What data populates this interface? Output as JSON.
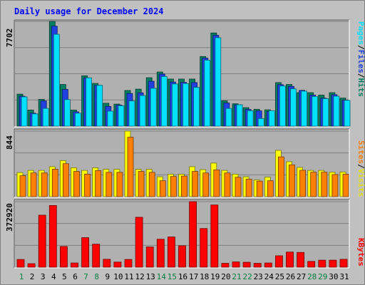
{
  "chart_data": [
    {
      "type": "bar",
      "title": "Daily usage for December 2024",
      "x": [
        "1",
        "2",
        "3",
        "4",
        "5",
        "6",
        "7",
        "8",
        "9",
        "10",
        "11",
        "12",
        "13",
        "14",
        "15",
        "16",
        "17",
        "18",
        "19",
        "20",
        "21",
        "22",
        "23",
        "24",
        "25",
        "26",
        "27",
        "28",
        "29",
        "30",
        "31"
      ],
      "weekend_days": [
        "1",
        "7",
        "8",
        "14",
        "15",
        "21",
        "22",
        "28",
        "29"
      ],
      "ylim": [
        0,
        7702
      ],
      "ytick": "7702",
      "grid": true,
      "legend": [
        "Pages",
        "/",
        "Files",
        "/",
        "Hits"
      ],
      "series": [
        {
          "name": "Hits",
          "color": "#007f5f",
          "values": [
            2350,
            1180,
            1970,
            7702,
            3060,
            1180,
            3700,
            3140,
            1680,
            1620,
            2620,
            2720,
            3560,
            3980,
            3460,
            3460,
            3460,
            5120,
            6850,
            1860,
            1640,
            1360,
            1240,
            1200,
            3200,
            3060,
            2460,
            2460,
            2280,
            2460,
            2060
          ]
        },
        {
          "name": "Files",
          "color": "#2040e0",
          "values": [
            2200,
            950,
            1850,
            7350,
            2700,
            1050,
            3550,
            3000,
            1450,
            1550,
            2400,
            2450,
            3300,
            3830,
            3240,
            3220,
            3200,
            5000,
            6680,
            1700,
            1570,
            1230,
            1120,
            1070,
            3050,
            2920,
            2630,
            2280,
            2060,
            2310,
            1920
          ]
        },
        {
          "name": "Pages",
          "color": "#00e0ff",
          "values": [
            2150,
            900,
            1300,
            6750,
            1950,
            950,
            3550,
            3000,
            1100,
            1500,
            1850,
            2250,
            2780,
            3650,
            3100,
            3130,
            2850,
            4850,
            6500,
            1300,
            1570,
            1130,
            560,
            1130,
            2950,
            2740,
            2570,
            2180,
            2020,
            2200,
            1900
          ]
        }
      ]
    },
    {
      "type": "bar",
      "ylim": [
        0,
        844
      ],
      "ytick": "844",
      "grid": true,
      "legend": [
        "Sites",
        "/",
        "Visits"
      ],
      "series": [
        {
          "name": "Visits",
          "color": "#ffff00",
          "values": [
            310,
            338,
            338,
            386,
            465,
            372,
            338,
            372,
            352,
            352,
            844,
            352,
            352,
            256,
            290,
            290,
            386,
            348,
            432,
            338,
            290,
            256,
            216,
            252,
            596,
            450,
            376,
            338,
            338,
            314,
            318
          ]
        },
        {
          "name": "Sites",
          "color": "#ff8000",
          "values": [
            270,
            305,
            305,
            353,
            425,
            325,
            290,
            336,
            313,
            313,
            765,
            325,
            313,
            205,
            260,
            265,
            325,
            305,
            345,
            305,
            250,
            225,
            200,
            205,
            512,
            410,
            340,
            315,
            315,
            285,
            290
          ]
        }
      ]
    },
    {
      "type": "bar",
      "ylim": [
        0,
        372920
      ],
      "ytick": "372920",
      "grid": true,
      "legend": [
        "KBytes"
      ],
      "series": [
        {
          "name": "KBytes",
          "color": "#ff0000",
          "values": [
            44000,
            20000,
            296000,
            351000,
            118000,
            24000,
            168000,
            131000,
            45000,
            29000,
            44000,
            284000,
            115000,
            159000,
            172000,
            122000,
            372920,
            220000,
            354000,
            22000,
            30000,
            28000,
            22000,
            24000,
            65000,
            86000,
            84000,
            33000,
            40000,
            40000,
            45000
          ]
        }
      ]
    }
  ]
}
